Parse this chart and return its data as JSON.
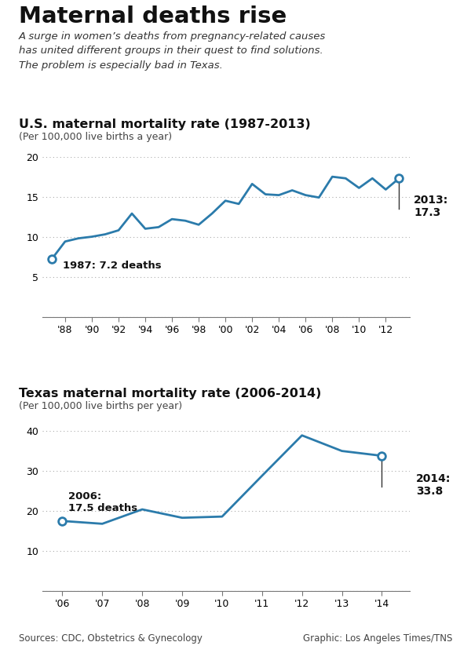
{
  "main_title": "Maternal deaths rise",
  "subtitle": "A surge in women’s deaths from pregnancy-related causes\nhas united different groups in their quest to find solutions.\nThe problem is especially bad in Texas.",
  "chart1_title": "U.S. maternal mortality rate (1987-2013)",
  "chart1_subtitle": "(Per 100,000 live births a year)",
  "chart1_years": [
    1987,
    1988,
    1989,
    1990,
    1991,
    1992,
    1993,
    1994,
    1995,
    1996,
    1997,
    1998,
    1999,
    2000,
    2001,
    2002,
    2003,
    2004,
    2005,
    2006,
    2007,
    2008,
    2009,
    2010,
    2011,
    2012,
    2013
  ],
  "chart1_values": [
    7.2,
    9.4,
    9.8,
    10.0,
    10.3,
    10.8,
    12.9,
    11.0,
    11.2,
    12.2,
    12.0,
    11.5,
    12.9,
    14.5,
    14.1,
    16.6,
    15.3,
    15.2,
    15.8,
    15.2,
    14.9,
    17.5,
    17.3,
    16.1,
    17.3,
    15.9,
    17.3
  ],
  "chart1_ylim": [
    0,
    20
  ],
  "chart1_yticks": [
    0,
    5,
    10,
    15,
    20
  ],
  "chart1_xtick_years": [
    1988,
    1990,
    1992,
    1994,
    1996,
    1998,
    2000,
    2002,
    2004,
    2006,
    2008,
    2010,
    2012
  ],
  "chart1_xtick_labels": [
    "'88",
    "'90",
    "'92",
    "'94",
    "'96",
    "'98",
    "'00",
    "'02",
    "'04",
    "'06",
    "'08",
    "'10",
    "'12"
  ],
  "chart1_start_label": "1987: 7.2 deaths",
  "chart1_end_label": "2013:\n17.3",
  "chart2_title": "Texas maternal mortality rate (2006-2014)",
  "chart2_subtitle": "(Per 100,000 live births per year)",
  "chart2_years": [
    2006,
    2007,
    2008,
    2009,
    2010,
    2011,
    2012,
    2013,
    2014
  ],
  "chart2_values": [
    17.5,
    16.8,
    20.4,
    18.3,
    18.6,
    28.8,
    38.9,
    35.0,
    33.8
  ],
  "chart2_ylim": [
    0,
    40
  ],
  "chart2_yticks": [
    0,
    10,
    20,
    30,
    40
  ],
  "chart2_xtick_years": [
    2006,
    2007,
    2008,
    2009,
    2010,
    2011,
    2012,
    2013,
    2014
  ],
  "chart2_xtick_labels": [
    "'06",
    "'07",
    "'08",
    "'09",
    "'10",
    "'11",
    "'12",
    "'13",
    "'14"
  ],
  "chart2_start_label": "2006:\n17.5 deaths",
  "chart2_end_label": "2014:\n33.8",
  "line_color": "#2b7bab",
  "bg_color": "#ffffff",
  "grid_color": "#aaaaaa",
  "source_text": "Sources: CDC, Obstetrics & Gynecology",
  "credit_text": "Graphic: Los Angeles Times/TNS"
}
